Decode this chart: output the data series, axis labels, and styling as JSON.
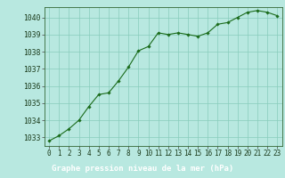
{
  "x": [
    0,
    1,
    2,
    3,
    4,
    5,
    6,
    7,
    8,
    9,
    10,
    11,
    12,
    13,
    14,
    15,
    16,
    17,
    18,
    19,
    20,
    21,
    22,
    23
  ],
  "y": [
    1032.8,
    1033.1,
    1033.5,
    1034.0,
    1034.8,
    1035.5,
    1035.6,
    1036.3,
    1037.1,
    1038.05,
    1038.3,
    1039.1,
    1039.0,
    1039.1,
    1039.0,
    1038.9,
    1039.1,
    1039.6,
    1039.7,
    1040.0,
    1040.3,
    1040.4,
    1040.3,
    1040.1
  ],
  "ylim": [
    1032.5,
    1040.6
  ],
  "xlim": [
    -0.5,
    23.5
  ],
  "yticks": [
    1033,
    1034,
    1035,
    1036,
    1037,
    1038,
    1039,
    1040
  ],
  "xticks": [
    0,
    1,
    2,
    3,
    4,
    5,
    6,
    7,
    8,
    9,
    10,
    11,
    12,
    13,
    14,
    15,
    16,
    17,
    18,
    19,
    20,
    21,
    22,
    23
  ],
  "line_color": "#1a6b1a",
  "marker_color": "#1a6b1a",
  "plot_bg_color": "#b8e8e0",
  "fig_bg_color": "#b8e8e0",
  "grid_color": "#88ccbb",
  "xlabel": "Graphe pression niveau de la mer (hPa)",
  "xlabel_color": "#1a4d1a",
  "xlabel_bg_color": "#2d7a2d",
  "xlabel_fontsize": 6.5,
  "tick_fontsize": 5.5,
  "ytick_fontsize": 5.8,
  "figsize": [
    3.2,
    2.0
  ],
  "dpi": 100
}
